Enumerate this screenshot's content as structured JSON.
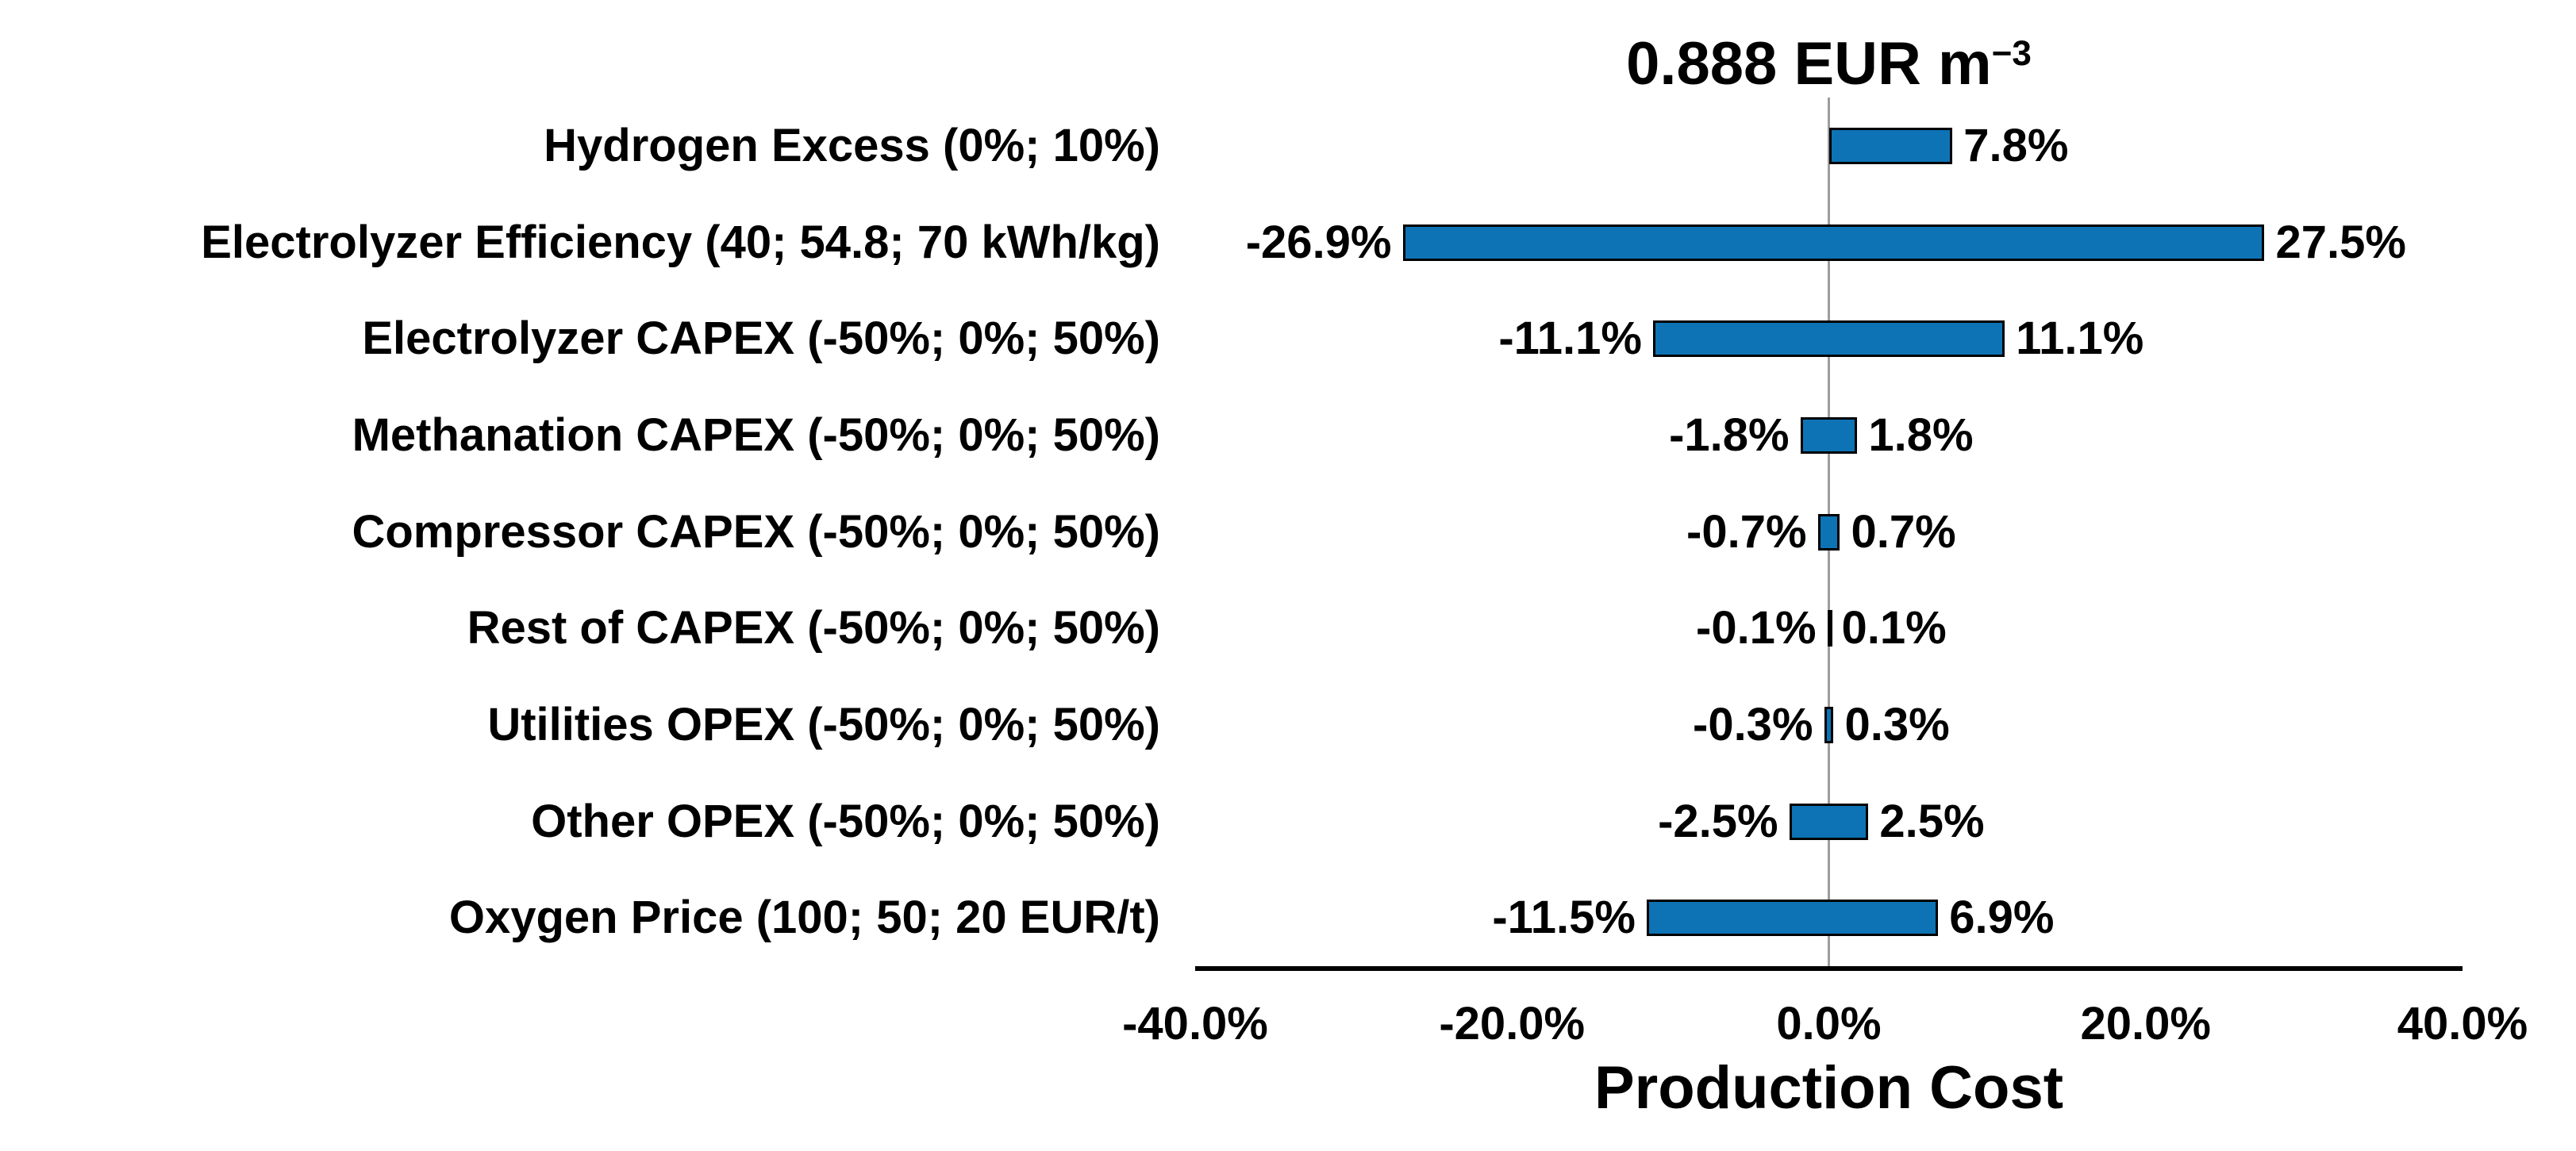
{
  "chart_data": {
    "type": "bar",
    "subtype": "tornado-sensitivity",
    "title": {
      "main": "0.888 EUR m",
      "superscript": "−3"
    },
    "xlabel": "Production Cost",
    "xlim": [
      -40,
      40
    ],
    "x_tick_values": [
      -40,
      -20,
      0,
      20,
      40
    ],
    "x_tick_labels": [
      "-40.0%",
      "-20.0%",
      "0.0%",
      "20.0%",
      "40.0%"
    ],
    "grid": "off",
    "legend": "none",
    "baseline_value": 0,
    "rows": [
      {
        "label": "Hydrogen Excess (0%; 10%)",
        "low": 0,
        "high": 7.8,
        "low_label": "",
        "high_label": "7.8%"
      },
      {
        "label": "Electrolyzer Efficiency (40; 54.8; 70 kWh/kg)",
        "low": -26.9,
        "high": 27.5,
        "low_label": "-26.9%",
        "high_label": "27.5%"
      },
      {
        "label": "Electrolyzer CAPEX (-50%; 0%; 50%)",
        "low": -11.1,
        "high": 11.1,
        "low_label": "-11.1%",
        "high_label": "11.1%"
      },
      {
        "label": "Methanation CAPEX (-50%; 0%; 50%)",
        "low": -1.8,
        "high": 1.8,
        "low_label": "-1.8%",
        "high_label": "1.8%"
      },
      {
        "label": "Compressor CAPEX (-50%; 0%; 50%)",
        "low": -0.7,
        "high": 0.7,
        "low_label": "-0.7%",
        "high_label": "0.7%"
      },
      {
        "label": "Rest of CAPEX (-50%; 0%; 50%)",
        "low": -0.1,
        "high": 0.1,
        "low_label": "-0.1%",
        "high_label": "0.1%"
      },
      {
        "label": "Utilities OPEX (-50%; 0%; 50%)",
        "low": -0.3,
        "high": 0.3,
        "low_label": "-0.3%",
        "high_label": "0.3%"
      },
      {
        "label": "Other OPEX (-50%; 0%; 50%)",
        "low": -2.5,
        "high": 2.5,
        "low_label": "-2.5%",
        "high_label": "2.5%"
      },
      {
        "label": "Oxygen Price (100; 50; 20 EUR/t)",
        "low": -11.5,
        "high": 6.9,
        "low_label": "-11.5%",
        "high_label": "6.9%"
      }
    ],
    "colors": {
      "bar_fill": "#0d73b5",
      "bar_border": "#000000",
      "zero_line": "#9d9d9d",
      "axis_line": "#000000",
      "text": "#000000",
      "background": "#ffffff"
    }
  }
}
